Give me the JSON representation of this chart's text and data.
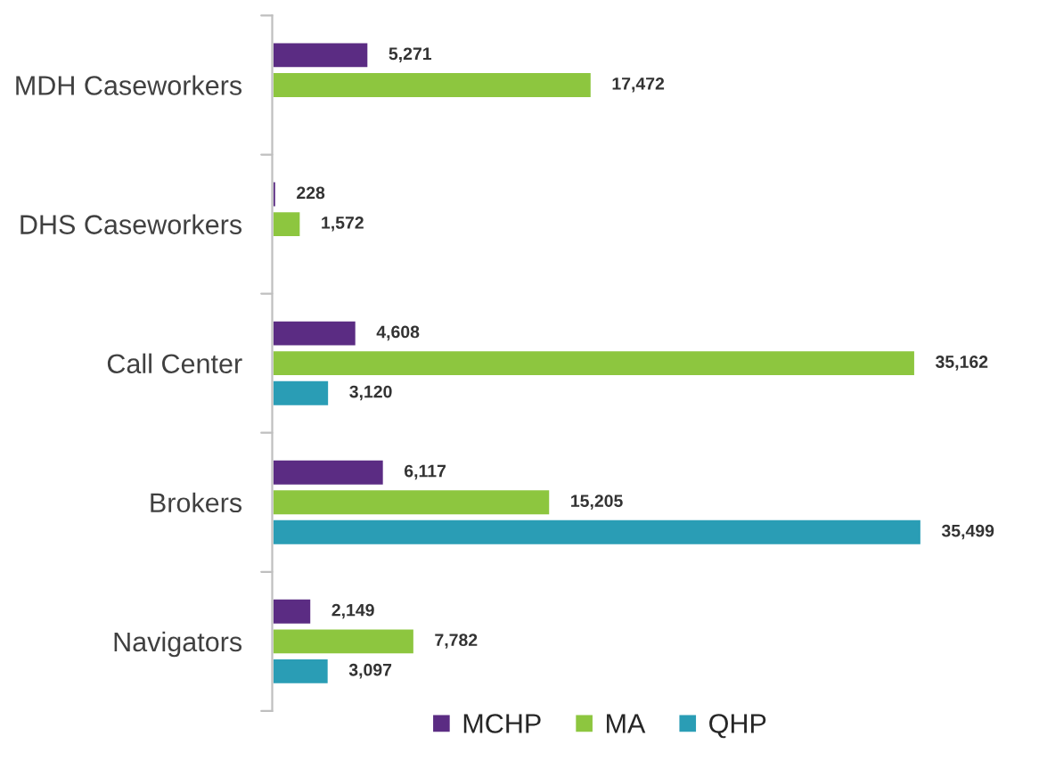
{
  "chart_data": {
    "type": "bar",
    "orientation": "horizontal",
    "categories": [
      "MDH Caseworkers",
      "DHS Caseworkers",
      "Call Center",
      "Brokers",
      "Navigators"
    ],
    "series": [
      {
        "name": "MCHP",
        "color": "#5b2c83",
        "values": [
          5271,
          228,
          4608,
          6117,
          2149
        ],
        "value_labels": [
          "5,271",
          "228",
          "4,608",
          "6,117",
          "2,149"
        ]
      },
      {
        "name": "MA",
        "color": "#8dc63f",
        "values": [
          17472,
          1572,
          35162,
          15205,
          7782
        ],
        "value_labels": [
          "17,472",
          "1,572",
          "35,162",
          "15,205",
          "7,782"
        ]
      },
      {
        "name": "QHP",
        "color": "#2a9db5",
        "values": [
          null,
          null,
          3120,
          35499,
          3097
        ],
        "value_labels": [
          null,
          null,
          "3,120",
          "35,499",
          "3,097"
        ]
      }
    ],
    "legend": "bottom",
    "tick_labels": "y"
  }
}
